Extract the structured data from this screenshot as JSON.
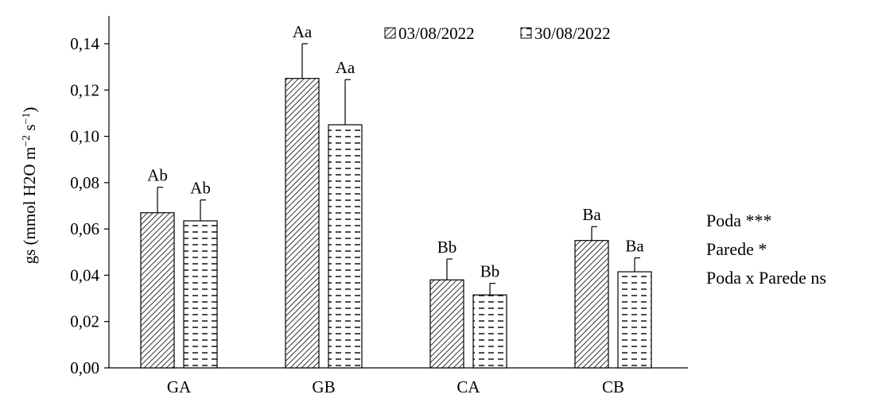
{
  "chart_data": {
    "type": "bar",
    "ylabel": "gs (mmol H2O m−2 s−1)",
    "ylabel_parts": {
      "base": "gs (mmol H2O m",
      "exp1": "−2",
      "mid": " s",
      "exp2": "−1",
      "end": ")"
    },
    "xlabel": "",
    "categories": [
      "GA",
      "GB",
      "CA",
      "CB"
    ],
    "ylim": [
      0,
      0.14
    ],
    "yticks": [
      0,
      0.02,
      0.04,
      0.06,
      0.08,
      0.1,
      0.12,
      0.14
    ],
    "ytick_labels": [
      "0,00",
      "0,02",
      "0,04",
      "0,06",
      "0,08",
      "0,10",
      "0,12",
      "0,14"
    ],
    "grid": false,
    "legend_position": "top-right",
    "series": [
      {
        "name": "03/08/2022",
        "pattern": "diagonal-hatch",
        "values": [
          0.067,
          0.125,
          0.038,
          0.055
        ],
        "errors": [
          0.011,
          0.015,
          0.009,
          0.006
        ],
        "labels": [
          "Ab",
          "Aa",
          "Bb",
          "Ba"
        ]
      },
      {
        "name": "30/08/2022",
        "pattern": "dashed-horizontal",
        "values": [
          0.0635,
          0.105,
          0.0315,
          0.0415
        ],
        "errors": [
          0.009,
          0.0195,
          0.005,
          0.006
        ],
        "labels": [
          "Ab",
          "Aa",
          "Bb",
          "Ba"
        ]
      }
    ]
  },
  "stats": {
    "line1": "Poda ***",
    "line2": "Parede *",
    "line3": "Poda x Parede ns"
  },
  "colors": {
    "bar_fill": "#ffffff",
    "stroke": "#000000",
    "axis": "#000000"
  }
}
